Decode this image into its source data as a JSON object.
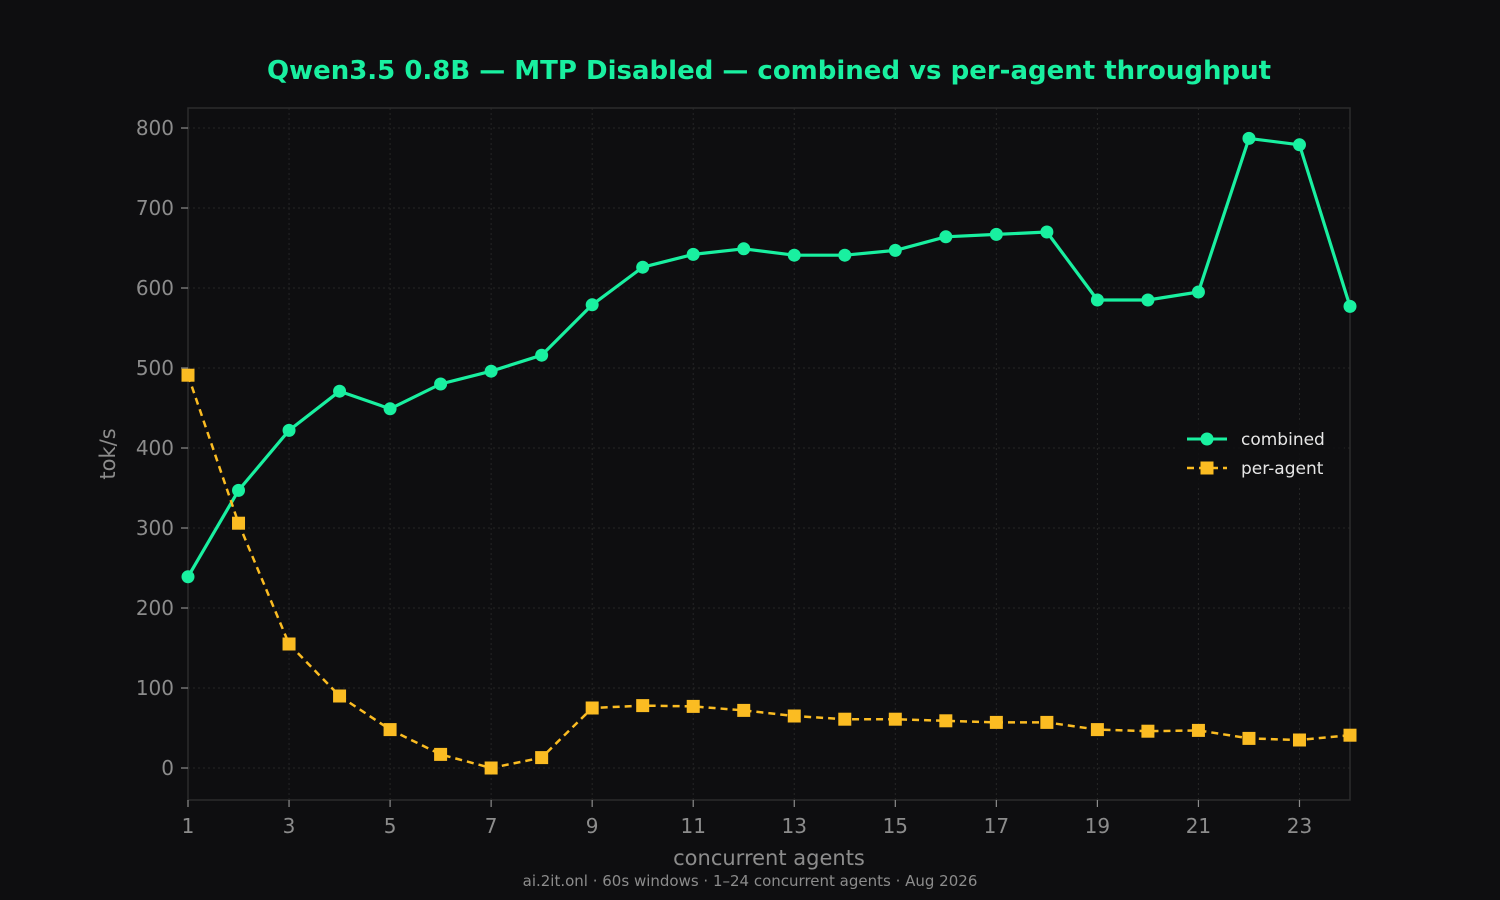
{
  "chart_data": {
    "type": "line",
    "title": "Qwen3.5 0.8B — MTP Disabled — combined vs per-agent throughput",
    "xlabel": "concurrent agents",
    "ylabel": "tok/s",
    "footer": "ai.2it.onl · 60s windows · 1–24 concurrent agents · Aug 2026",
    "x": [
      1,
      2,
      3,
      4,
      5,
      6,
      7,
      8,
      9,
      10,
      11,
      12,
      13,
      14,
      15,
      16,
      17,
      18,
      19,
      20,
      21,
      22,
      23,
      24
    ],
    "xlim": [
      1,
      24
    ],
    "ylim": [
      -40,
      825
    ],
    "xticks": [
      1,
      3,
      5,
      7,
      9,
      11,
      13,
      15,
      17,
      19,
      21,
      23
    ],
    "yticks": [
      0,
      100,
      200,
      300,
      400,
      500,
      600,
      700,
      800
    ],
    "grid": true,
    "legend": "center-right",
    "colors": {
      "combined": "#19f0a0",
      "per_agent": "#fbbc22",
      "background": "#0e0e10"
    },
    "series": [
      {
        "name": "combined",
        "style": "solid",
        "marker": "circle",
        "values": [
          239,
          347,
          422,
          471,
          449,
          480,
          496,
          516,
          579,
          626,
          642,
          649,
          641,
          641,
          647,
          664,
          667,
          670,
          585,
          585,
          595,
          787,
          779,
          577
        ]
      },
      {
        "name": "per-agent",
        "style": "dashed",
        "marker": "square",
        "values": [
          491,
          306,
          155,
          90,
          48,
          17,
          0,
          13,
          75,
          78,
          77,
          72,
          65,
          61,
          61,
          59,
          57,
          57,
          48,
          46,
          47,
          37,
          35,
          41
        ]
      }
    ]
  }
}
